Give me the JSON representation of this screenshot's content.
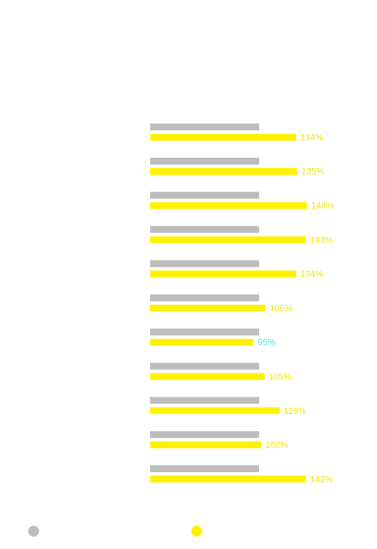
{
  "chart_data": {
    "type": "bar",
    "orientation": "horizontal",
    "categories": [
      null,
      null,
      null,
      null,
      null,
      null,
      null,
      null,
      null,
      null,
      null
    ],
    "series": [
      {
        "color": "#bdbdbd",
        "values": [
          100,
          100,
          100,
          100,
          100,
          100,
          100,
          100,
          100,
          100,
          100
        ]
      },
      {
        "color": "#fff200",
        "values": [
          134,
          135,
          144,
          143,
          134,
          106,
          95,
          105,
          119,
          102,
          143
        ],
        "value_labels": [
          "134%",
          "135%",
          "144%",
          "143%",
          "134%",
          "106%",
          "95%",
          "105%",
          "119%",
          "102%",
          "143%"
        ],
        "label_color": "#f2e600",
        "below_reference_label_color": "#4fe3e3"
      }
    ],
    "xlim": [
      0,
      200
    ],
    "grid": false,
    "legend": "bottom"
  }
}
